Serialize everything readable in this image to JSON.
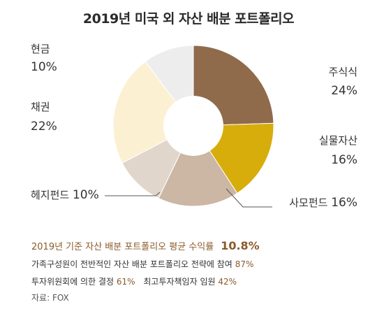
{
  "chart_data": {
    "type": "pie",
    "title": "2019년 미국 외 자산 배분 포트폴리오",
    "slices": [
      {
        "name": "주식식",
        "value": 24,
        "label": "24%",
        "color": "#8f6b4c"
      },
      {
        "name": "실물자산",
        "value": 16,
        "label": "16%",
        "color": "#d7ad0c"
      },
      {
        "name": "사모펀드",
        "value": 16,
        "label": "16%",
        "color": "#ccb6a4"
      },
      {
        "name": "헤지펀드",
        "value": 10,
        "label": "10%",
        "color": "#e0d6cc"
      },
      {
        "name": "채권",
        "value": 22,
        "label": "22%",
        "color": "#fcf0d2"
      },
      {
        "name": "현금",
        "value": 10,
        "label": "10%",
        "color": "#ededed"
      }
    ]
  },
  "footer": {
    "line1_text": "2019년 기준 자산 배분 포트폴리오 평균 수익률",
    "line1_value": "10.8%",
    "line2_text": "가족구성원이 전반적인 자산 배분 포트폴리오 전략에 참여",
    "line2_value": "87%",
    "line3_text_a": "투자위원회에 의한 결정",
    "line3_value_a": "61%",
    "line3_text_b": "최고투자책임자 임원",
    "line3_value_b": "42%",
    "source": "자료: FOX"
  }
}
